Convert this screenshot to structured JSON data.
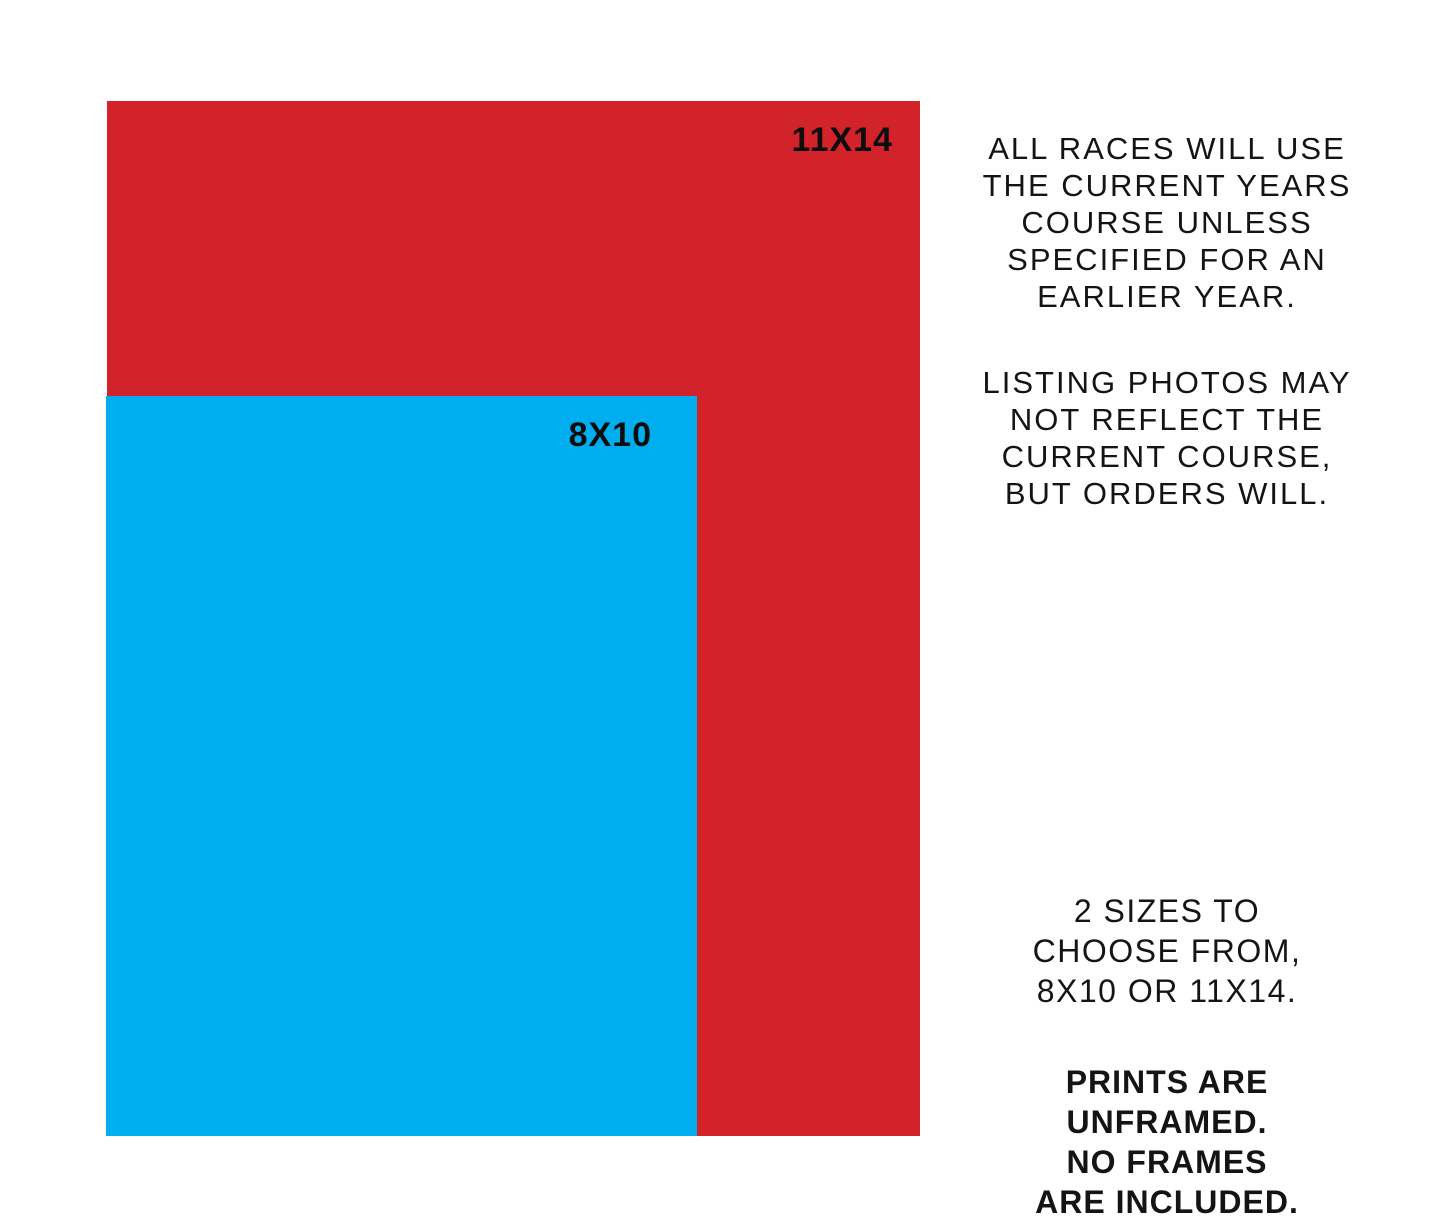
{
  "canvas": {
    "background_color": "#ffffff",
    "text_color": "#141414"
  },
  "size_diagram": {
    "large_print": {
      "label": "11X14",
      "color": "#d2232a"
    },
    "small_print": {
      "label": "8X10",
      "color": "#00aeef"
    }
  },
  "notes": {
    "course_note": "ALL RACES WILL USE\nTHE CURRENT YEARS\nCOURSE UNLESS\nSPECIFIED FOR AN\nEARLIER YEAR.",
    "photos_note": "LISTING PHOTOS MAY\nNOT REFLECT THE\nCURRENT COURSE,\nBUT ORDERS WILL.",
    "sizes_note": "2 SIZES TO\nCHOOSE FROM,\n8X10 OR 11X14.",
    "frames_note": "PRINTS ARE\nUNFRAMED.\nNO FRAMES\nARE INCLUDED."
  }
}
